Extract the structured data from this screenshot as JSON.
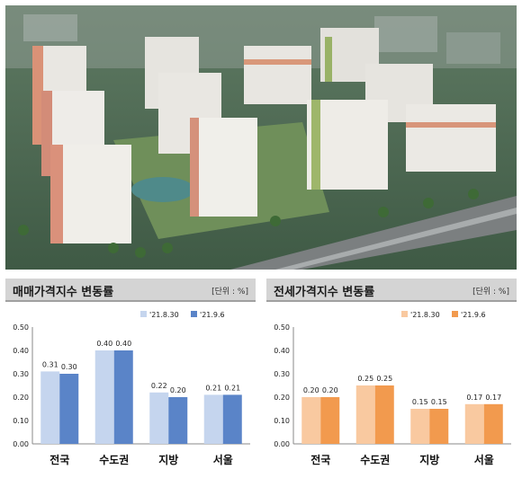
{
  "hero": {
    "description_icon": "apartment-complex-illustration"
  },
  "chart_data": [
    {
      "type": "bar",
      "title": "매매가격지수 변동률",
      "unit": "[단위 : %]",
      "categories": [
        "전국",
        "수도권",
        "지방",
        "서울"
      ],
      "series": [
        {
          "name": "'21.8.30",
          "values": [
            0.31,
            0.4,
            0.22,
            0.21
          ],
          "color": "#c5d5ee"
        },
        {
          "name": "'21.9.6",
          "values": [
            0.3,
            0.4,
            0.2,
            0.21
          ],
          "color": "#5a84c8"
        }
      ],
      "data_labels": [
        [
          "0.31",
          "0.40",
          "0.22",
          "0.21"
        ],
        [
          "0.30",
          "0.40",
          "0.20",
          "0.21"
        ]
      ],
      "yticks": [
        "0.00",
        "0.10",
        "0.20",
        "0.30",
        "0.40",
        "0.50"
      ],
      "ylim": [
        0,
        0.5
      ],
      "grid": false,
      "legend_position": "top-right"
    },
    {
      "type": "bar",
      "title": "전세가격지수 변동률",
      "unit": "[단위 : %]",
      "categories": [
        "전국",
        "수도권",
        "지방",
        "서울"
      ],
      "series": [
        {
          "name": "'21.8.30",
          "values": [
            0.2,
            0.25,
            0.15,
            0.17
          ],
          "color": "#f9c9a0"
        },
        {
          "name": "'21.9.6",
          "values": [
            0.2,
            0.25,
            0.15,
            0.17
          ],
          "color": "#f29a4e"
        }
      ],
      "data_labels": [
        [
          "0.20",
          "0.25",
          "0.15",
          "0.17"
        ],
        [
          "0.20",
          "0.25",
          "0.15",
          "0.17"
        ]
      ],
      "yticks": [
        "0.00",
        "0.10",
        "0.20",
        "0.30",
        "0.40",
        "0.50"
      ],
      "ylim": [
        0,
        0.5
      ],
      "grid": false,
      "legend_position": "top-right"
    }
  ]
}
